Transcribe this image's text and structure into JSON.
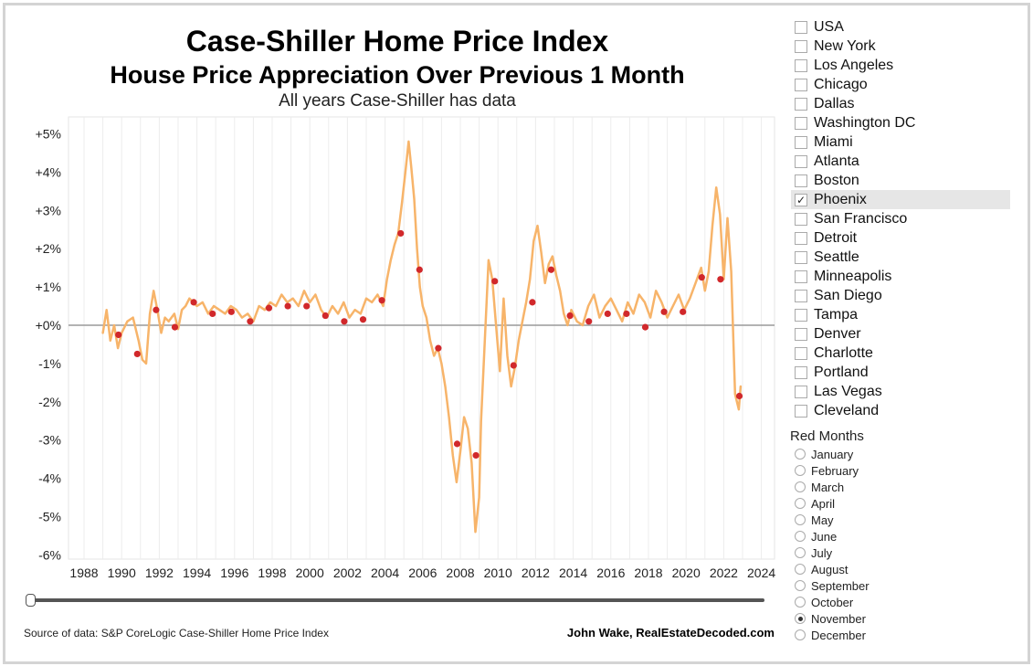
{
  "titles": {
    "main": "Case-Shiller Home Price Index",
    "sub": "House Price Appreciation Over Previous 1 Month",
    "caption": "All years Case-Shiller has data"
  },
  "footer": {
    "source": "Source of data: S&P CoreLogic Case-Shiller Home Price Index",
    "credit": "John Wake, RealEstateDecoded.com"
  },
  "filters": {
    "cities": [
      {
        "label": "USA",
        "checked": false
      },
      {
        "label": "New York",
        "checked": false
      },
      {
        "label": "Los Angeles",
        "checked": false
      },
      {
        "label": "Chicago",
        "checked": false
      },
      {
        "label": "Dallas",
        "checked": false
      },
      {
        "label": "Washington DC",
        "checked": false
      },
      {
        "label": "Miami",
        "checked": false
      },
      {
        "label": "Atlanta",
        "checked": false
      },
      {
        "label": "Boston",
        "checked": false
      },
      {
        "label": "Phoenix",
        "checked": true
      },
      {
        "label": "San Francisco",
        "checked": false
      },
      {
        "label": "Detroit",
        "checked": false
      },
      {
        "label": "Seattle",
        "checked": false
      },
      {
        "label": "Minneapolis",
        "checked": false
      },
      {
        "label": "San Diego",
        "checked": false
      },
      {
        "label": "Tampa",
        "checked": false
      },
      {
        "label": "Denver",
        "checked": false
      },
      {
        "label": "Charlotte",
        "checked": false
      },
      {
        "label": "Portland",
        "checked": false
      },
      {
        "label": "Las Vegas",
        "checked": false
      },
      {
        "label": "Cleveland",
        "checked": false
      }
    ],
    "red_months_title": "Red Months",
    "months": [
      "January",
      "February",
      "March",
      "April",
      "May",
      "June",
      "July",
      "August",
      "September",
      "October",
      "November",
      "December"
    ],
    "selected_month": "November"
  },
  "colors": {
    "line": "#f7b46a",
    "marker": "#d1282b",
    "zero_line": "#9a9a9a",
    "grid": "#ececec"
  },
  "chart_data": {
    "type": "line",
    "title": "Case-Shiller Home Price Index",
    "subtitle": "House Price Appreciation Over Previous 1 Month",
    "xlabel": "",
    "ylabel": "",
    "ylim": [
      -6,
      5
    ],
    "y_ticks": [
      "+5%",
      "+4%",
      "+3%",
      "+2%",
      "+1%",
      "+0%",
      "-1%",
      "-2%",
      "-3%",
      "-4%",
      "-5%",
      "-6%"
    ],
    "x_ticks": [
      "1988",
      "1990",
      "1992",
      "1994",
      "1996",
      "1998",
      "2000",
      "2002",
      "2004",
      "2006",
      "2008",
      "2010",
      "2012",
      "2014",
      "2016",
      "2018",
      "2020",
      "2022",
      "2024"
    ],
    "grid": "vertical",
    "series": [
      {
        "name": "Phoenix",
        "x": [
          1989.0,
          1989.2,
          1989.4,
          1989.6,
          1989.8,
          1990.0,
          1990.3,
          1990.6,
          1990.9,
          1991.1,
          1991.3,
          1991.5,
          1991.7,
          1991.9,
          1992.1,
          1992.3,
          1992.5,
          1992.8,
          1993.0,
          1993.2,
          1993.4,
          1993.6,
          1993.8,
          1994.0,
          1994.3,
          1994.6,
          1994.9,
          1995.2,
          1995.5,
          1995.8,
          1996.1,
          1996.4,
          1996.7,
          1997.0,
          1997.3,
          1997.6,
          1997.9,
          1998.2,
          1998.5,
          1998.8,
          1999.1,
          1999.4,
          1999.7,
          2000.0,
          2000.3,
          2000.6,
          2000.9,
          2001.2,
          2001.5,
          2001.8,
          2002.1,
          2002.4,
          2002.7,
          2003.0,
          2003.3,
          2003.6,
          2003.9,
          2004.1,
          2004.3,
          2004.5,
          2004.7,
          2004.9,
          2005.1,
          2005.25,
          2005.4,
          2005.55,
          2005.7,
          2005.85,
          2006.0,
          2006.2,
          2006.4,
          2006.6,
          2006.8,
          2007.0,
          2007.2,
          2007.4,
          2007.6,
          2007.8,
          2008.0,
          2008.2,
          2008.4,
          2008.6,
          2008.8,
          2009.0,
          2009.1,
          2009.3,
          2009.5,
          2009.7,
          2009.9,
          2010.1,
          2010.3,
          2010.5,
          2010.7,
          2010.9,
          2011.1,
          2011.3,
          2011.5,
          2011.7,
          2011.9,
          2012.1,
          2012.3,
          2012.5,
          2012.7,
          2012.9,
          2013.1,
          2013.3,
          2013.5,
          2013.7,
          2013.9,
          2014.2,
          2014.5,
          2014.8,
          2015.1,
          2015.4,
          2015.7,
          2016.0,
          2016.3,
          2016.6,
          2016.9,
          2017.2,
          2017.5,
          2017.8,
          2018.1,
          2018.4,
          2018.7,
          2019.0,
          2019.3,
          2019.6,
          2019.9,
          2020.2,
          2020.5,
          2020.8,
          2021.0,
          2021.2,
          2021.4,
          2021.6,
          2021.8,
          2022.0,
          2022.2,
          2022.4,
          2022.6,
          2022.8,
          2022.9
        ],
        "values": [
          -0.2,
          0.4,
          -0.4,
          0.0,
          -0.6,
          -0.2,
          0.1,
          0.2,
          -0.4,
          -0.9,
          -1.0,
          0.3,
          0.9,
          0.4,
          -0.2,
          0.2,
          0.1,
          0.3,
          -0.1,
          0.4,
          0.5,
          0.7,
          0.6,
          0.5,
          0.6,
          0.3,
          0.5,
          0.4,
          0.3,
          0.5,
          0.4,
          0.2,
          0.3,
          0.1,
          0.5,
          0.4,
          0.6,
          0.5,
          0.8,
          0.6,
          0.7,
          0.5,
          0.9,
          0.6,
          0.8,
          0.4,
          0.2,
          0.5,
          0.3,
          0.6,
          0.2,
          0.4,
          0.3,
          0.7,
          0.6,
          0.8,
          0.5,
          1.2,
          1.7,
          2.1,
          2.4,
          3.2,
          4.1,
          4.8,
          4.1,
          3.3,
          2.0,
          1.0,
          0.5,
          0.2,
          -0.4,
          -0.8,
          -0.6,
          -1.0,
          -1.6,
          -2.4,
          -3.4,
          -4.1,
          -3.3,
          -2.4,
          -2.7,
          -3.6,
          -5.4,
          -4.5,
          -2.5,
          -0.4,
          1.7,
          1.2,
          0.0,
          -1.2,
          0.7,
          -0.8,
          -1.6,
          -1.1,
          -0.4,
          0.1,
          0.6,
          1.2,
          2.2,
          2.6,
          1.9,
          1.1,
          1.6,
          1.8,
          1.3,
          0.9,
          0.3,
          0.0,
          0.4,
          0.1,
          0.0,
          0.5,
          0.8,
          0.2,
          0.5,
          0.7,
          0.4,
          0.1,
          0.6,
          0.3,
          0.8,
          0.6,
          0.2,
          0.9,
          0.6,
          0.2,
          0.5,
          0.8,
          0.4,
          0.7,
          1.1,
          1.5,
          0.9,
          1.4,
          2.6,
          3.6,
          2.9,
          1.2,
          2.8,
          1.4,
          -1.8,
          -2.2,
          -1.6
        ]
      },
      {
        "name": "Red Months",
        "type": "scatter",
        "x": [
          1989.83,
          1990.83,
          1991.83,
          1992.83,
          1993.83,
          1994.83,
          1995.83,
          1996.83,
          1997.83,
          1998.83,
          1999.83,
          2000.83,
          2001.83,
          2002.83,
          2003.83,
          2004.83,
          2005.83,
          2006.83,
          2007.83,
          2008.83,
          2009.83,
          2010.83,
          2011.83,
          2012.83,
          2013.83,
          2014.83,
          2015.83,
          2016.83,
          2017.83,
          2018.83,
          2019.83,
          2020.83,
          2021.83,
          2022.83
        ],
        "values": [
          -0.25,
          -0.75,
          0.4,
          -0.05,
          0.6,
          0.3,
          0.35,
          0.1,
          0.45,
          0.5,
          0.5,
          0.25,
          0.1,
          0.15,
          0.65,
          2.4,
          1.45,
          -0.6,
          -3.1,
          -3.4,
          1.15,
          -1.05,
          0.6,
          1.45,
          0.25,
          0.1,
          0.3,
          0.3,
          -0.05,
          0.35,
          0.35,
          1.25,
          1.2,
          -1.85
        ]
      }
    ]
  }
}
